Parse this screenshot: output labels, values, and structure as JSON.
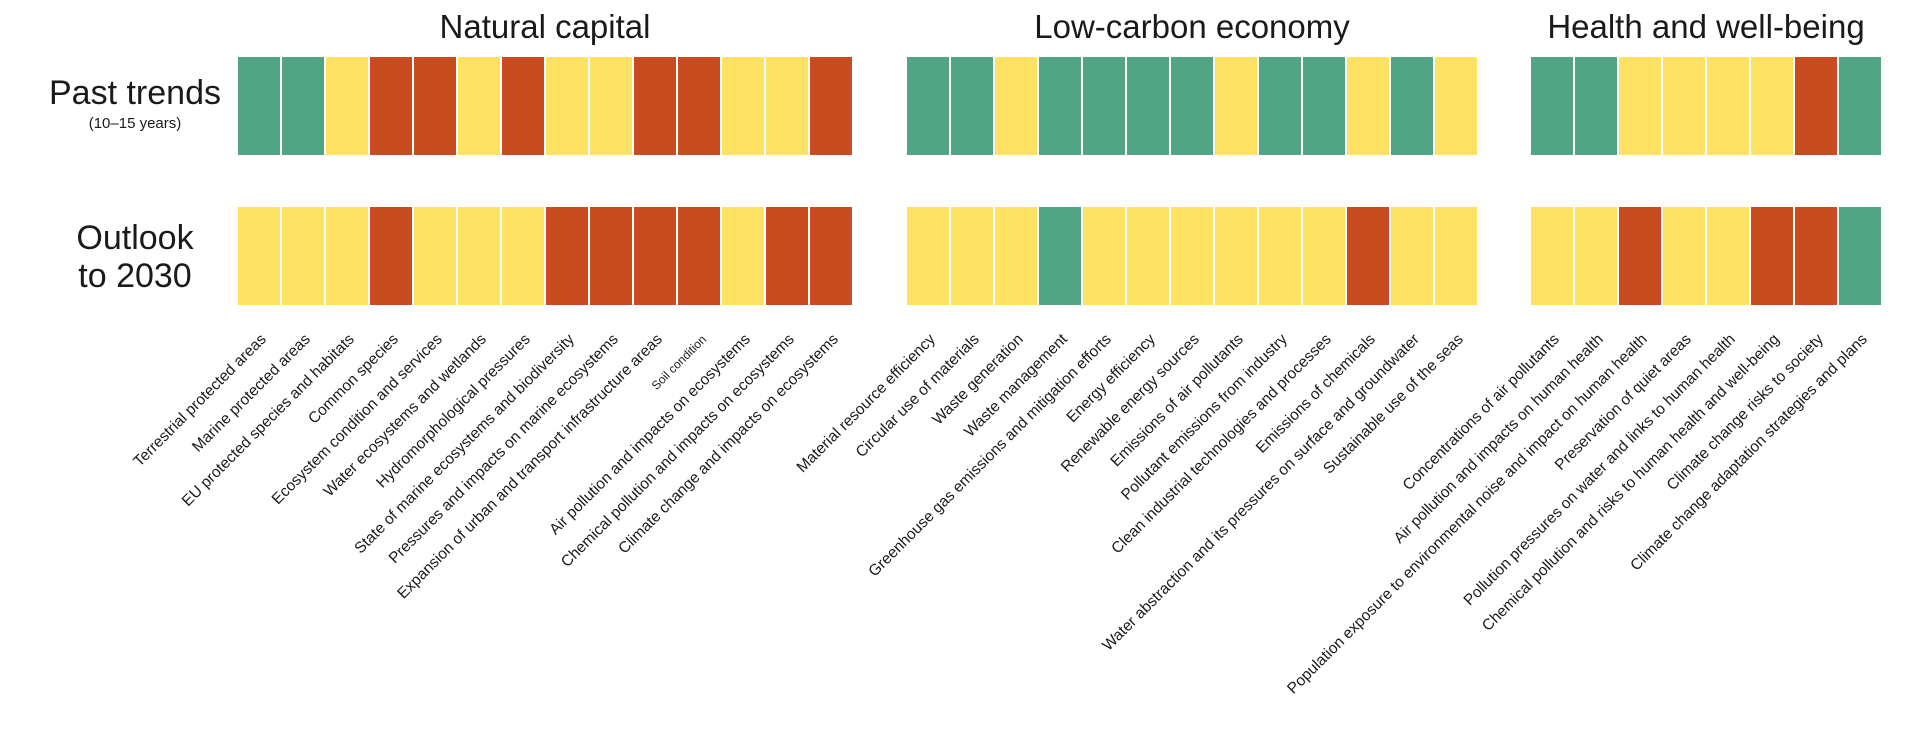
{
  "chart_data": {
    "type": "heatmap",
    "rows": [
      {
        "label_lines": [
          "Past trends"
        ],
        "sublabel": "(10–15 years)"
      },
      {
        "label_lines": [
          "Outlook",
          "to 2030"
        ],
        "sublabel": ""
      }
    ],
    "status_colors": {
      "improving": "#52a584",
      "mixed": "#fde264",
      "deteriorating": "#c84c1f"
    },
    "groups": [
      {
        "title": "Natural capital",
        "indicators": [
          "Terrestrial protected areas",
          "Marine protected areas",
          "EU protected species and habitats",
          "Common species",
          "Ecosystem condition and services",
          "Water ecosystems and wetlands",
          "Hydromorphological pressures",
          "State of marine ecosystems and biodiversity",
          "Pressures and impacts on marine ecosystems",
          "Expansion of urban and transport infrastructure areas",
          "Soil condition",
          "Air pollution and impacts on ecosystems",
          "Chemical pollution and impacts on ecosystems",
          "Climate change and impacts on ecosystems"
        ],
        "past_trends": [
          "improving",
          "improving",
          "mixed",
          "deteriorating",
          "deteriorating",
          "mixed",
          "deteriorating",
          "mixed",
          "mixed",
          "deteriorating",
          "deteriorating",
          "mixed",
          "mixed",
          "deteriorating"
        ],
        "outlook_2030": [
          "mixed",
          "mixed",
          "mixed",
          "deteriorating",
          "mixed",
          "mixed",
          "mixed",
          "deteriorating",
          "deteriorating",
          "deteriorating",
          "deteriorating",
          "mixed",
          "deteriorating",
          "deteriorating"
        ]
      },
      {
        "title": "Low-carbon economy",
        "indicators": [
          "Material resource efficiency",
          "Circular use of materials",
          "Waste generation",
          "Waste management",
          "Greenhouse gas emissions and mitigation efforts",
          "Energy efficiency",
          "Renewable energy sources",
          "Emissions of air pollutants",
          "Pollutant emissions from industry",
          "Clean industrial technologies and processes",
          "Emissions of chemicals",
          "Water abstraction and its pressures on surface and groundwater",
          "Sustainable use of the seas"
        ],
        "past_trends": [
          "improving",
          "improving",
          "mixed",
          "improving",
          "improving",
          "improving",
          "improving",
          "mixed",
          "improving",
          "improving",
          "mixed",
          "improving",
          "mixed"
        ],
        "outlook_2030": [
          "mixed",
          "mixed",
          "mixed",
          "improving",
          "mixed",
          "mixed",
          "mixed",
          "mixed",
          "mixed",
          "mixed",
          "deteriorating",
          "mixed",
          "mixed"
        ]
      },
      {
        "title": "Health and well-being",
        "indicators": [
          "Concentrations of air pollutants",
          "Air pollution and impacts on human health",
          "Population exposure to environmental noise and impact on human health",
          "Preservation of quiet areas",
          "Pollution pressures on water and links to human health",
          "Chemical pollution and risks to human health and well-being",
          "Climate change risks to society",
          "Climate change adaptation strategies and plans"
        ],
        "past_trends": [
          "improving",
          "improving",
          "mixed",
          "mixed",
          "mixed",
          "mixed",
          "deteriorating",
          "improving"
        ],
        "outlook_2030": [
          "mixed",
          "mixed",
          "deteriorating",
          "mixed",
          "mixed",
          "deteriorating",
          "deteriorating",
          "improving"
        ]
      }
    ]
  }
}
